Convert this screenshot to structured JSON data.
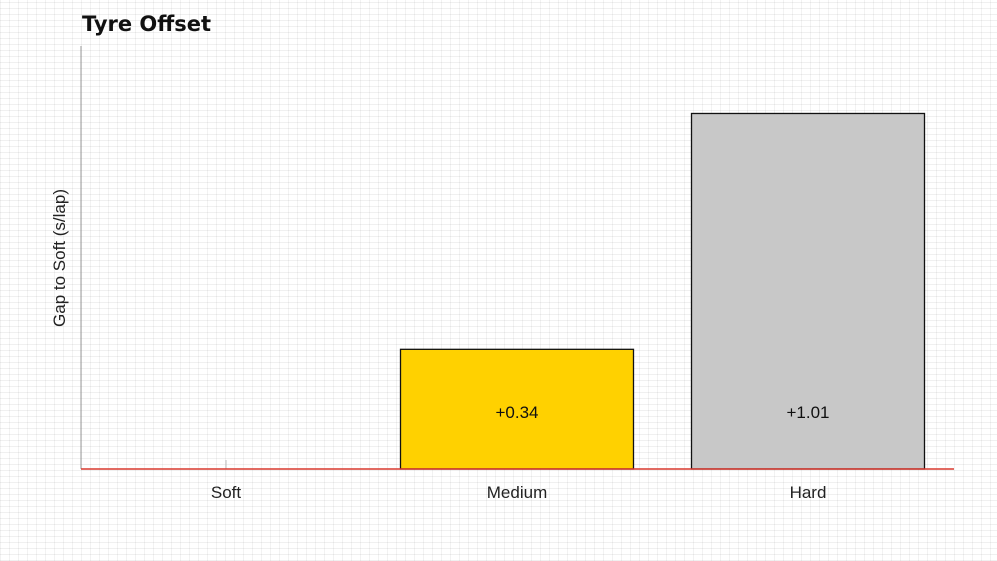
{
  "chart_data": {
    "type": "bar",
    "title": "Tyre Offset",
    "xlabel": "",
    "ylabel": "Gap to Soft (s/lap)",
    "categories": [
      "Soft",
      "Medium",
      "Hard"
    ],
    "values": [
      0,
      0.34,
      1.01
    ],
    "value_labels": [
      "",
      "+0.34",
      "+1.01"
    ],
    "colors": [
      "#ffffff",
      "#ffd100",
      "#c8c8c8"
    ],
    "ylim": [
      0,
      1.2
    ],
    "baseline_color": "#d9392f",
    "grid": false,
    "legend": "none"
  }
}
